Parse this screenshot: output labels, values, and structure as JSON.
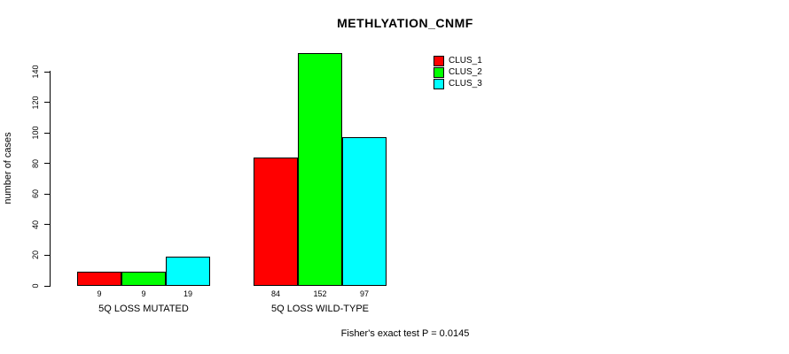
{
  "chart_data": {
    "type": "bar",
    "title": "METHLYATION_CNMF",
    "xlabel": "",
    "ylabel": "number of cases",
    "categories": [
      "5Q LOSS MUTATED",
      "5Q LOSS WILD-TYPE"
    ],
    "series": [
      {
        "name": "CLUS_1",
        "color": "#ff0000",
        "values": [
          9,
          84
        ]
      },
      {
        "name": "CLUS_2",
        "color": "#00ff00",
        "values": [
          9,
          152
        ]
      },
      {
        "name": "CLUS_3",
        "color": "#00ffff",
        "values": [
          19,
          97
        ]
      }
    ],
    "bar_value_labels": [
      [
        "9",
        "9",
        "19"
      ],
      [
        "84",
        "152",
        "97"
      ]
    ],
    "yticks": [
      0,
      20,
      40,
      60,
      80,
      100,
      120,
      140
    ],
    "ylim": [
      0,
      152
    ],
    "grid": false,
    "legend_position": "top-right",
    "legend_entries": [
      "CLUS_1",
      "CLUS_2",
      "CLUS_3"
    ],
    "annotation": "Fisher's exact test P = 0.0145"
  },
  "colors": {
    "axis": "#000000",
    "text": "#000000",
    "background": "#ffffff"
  }
}
